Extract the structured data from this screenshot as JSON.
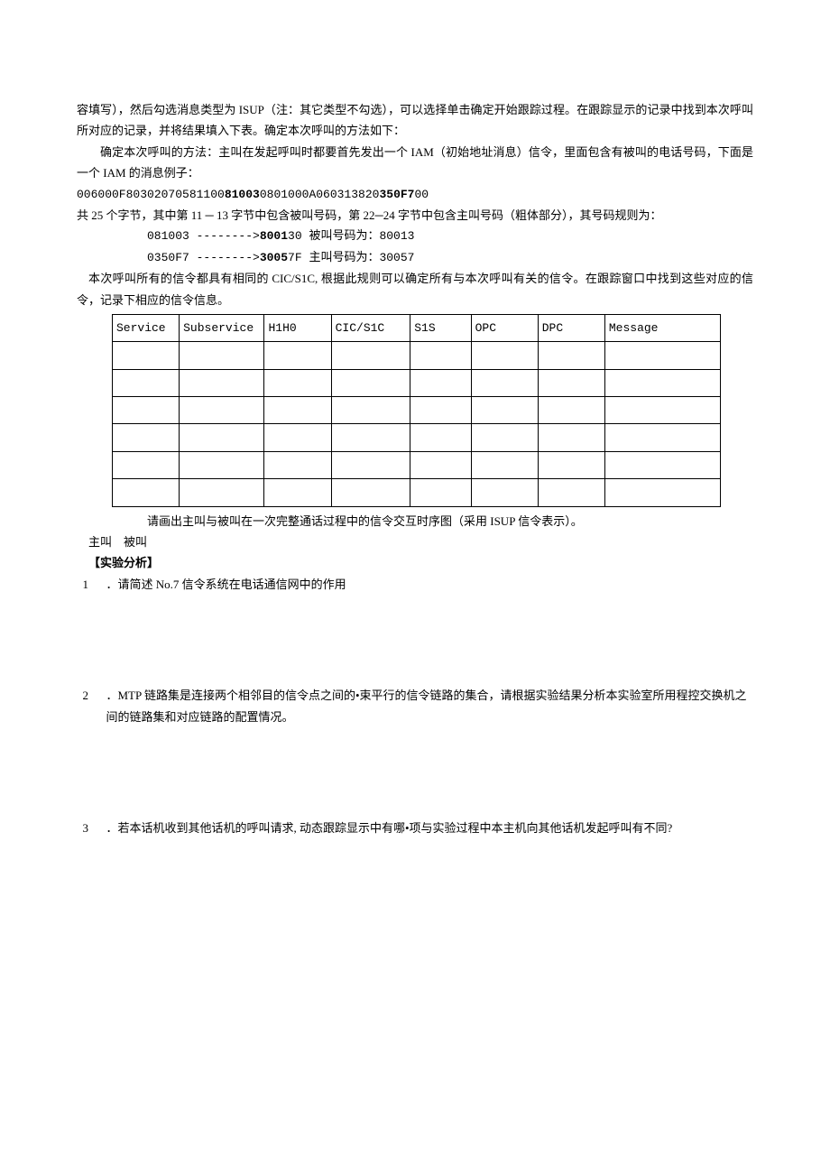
{
  "doc": {
    "p1": "容填写），然后勾选消息类型为 ISUP（注：其它类型不勾选），可以选择单击确定开始跟踪过程。在跟踪显示的记录中找到本次呼叫所对应的记录，并将结果填入下表。确定本次呼叫的方法如下：",
    "p2": "确定本次呼叫的方法：主叫在发起呼叫时都要首先发出一个 IAM（初始地址消息）信令，里面包含有被叫的电话号码，下面是一个 IAM 的消息例子：",
    "hex_prefix": "006000F80302070581100",
    "hex_bold1": "81003",
    "hex_mid": "0801000A060313820",
    "hex_bold2": "350F7",
    "hex_suffix": "00",
    "p3": "共 25 个字节，其中第 11 ─ 13 字节中包含被叫号码，第 22─24 字节中包含主叫号码（粗体部分），其号码规则为：",
    "code1_left": "081003 -------->",
    "code1_bold": "8001",
    "code1_right": "30 被叫号码为：80013",
    "code2_left": "0350F7 -------->",
    "code2_bold": "3005",
    "code2_right": "7F 主叫号码为：30057",
    "p4": "本次呼叫所有的信令都具有相同的 CIC/S1C, 根据此规则可以确定所有与本次呼叫有关的信令。在跟踪窗口中找到这些对应的信令，记录下相应的信令信息。",
    "table": {
      "header": [
        "Service",
        "Subservice",
        "H1H0",
        "CIC/S1C",
        "S1S",
        "OPC",
        "DPC",
        "Message"
      ],
      "rows": 6,
      "col_widths": [
        "11%",
        "14%",
        "11%",
        "13%",
        "10%",
        "11%",
        "11%",
        "19%"
      ]
    },
    "p5": "请画出主叫与被叫在一次完整通话过程中的信令交互时序图（采用 ISUP 信令表示）。",
    "caller_callee": "主叫　被叫",
    "analysis_label": "【实验分析】",
    "q1_num": "1",
    "q1_text": "．请简述 No.7 信令系统在电话通信网中的作用",
    "q2_num": "2",
    "q2_text": "．MTP 链路集是连接两个相邻目的信令点之间的•束平行的信令链路的集合，请根据实验结果分析本实验室所用程控交换机之间的链路集和对应链路的配置情况。",
    "q3_num": "3",
    "q3_text": "．若本话机收到其他话机的呼叫请求, 动态跟踪显示中有哪•项与实验过程中本主机向其他话机发起呼叫有不同?"
  }
}
